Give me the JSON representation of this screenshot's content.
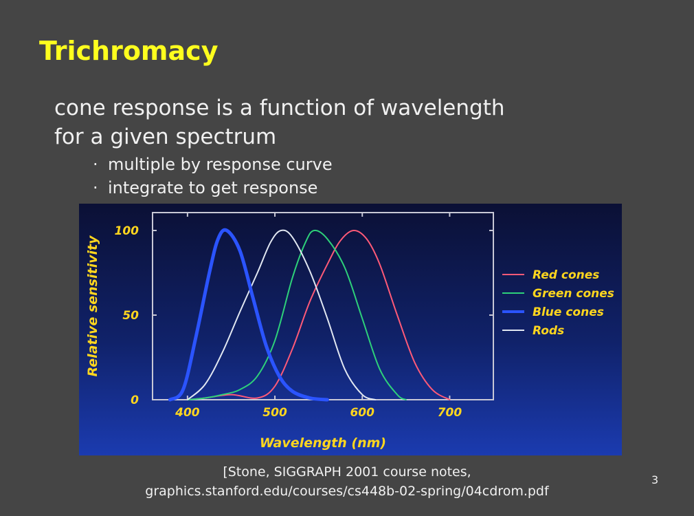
{
  "slide": {
    "title": "Trichromacy",
    "line1": "cone response is a function of wavelength",
    "line2": "for a given spectrum",
    "bullet_glyph": "·",
    "bullets": [
      "multiple by response curve",
      "integrate to get response"
    ],
    "citation_line1": "[Stone, SIGGRAPH 2001 course notes,",
    "citation_line2": "graphics.stanford.edu/courses/cs448b-02-spring/04cdrom.pdf",
    "page_number": "3"
  },
  "colors": {
    "slide_background": "#454545",
    "title": "#ffff1e",
    "text": "#f1f1f1",
    "figure_background_top": "#0b1035",
    "figure_background_bottom": "#1b3bb0",
    "axis_frame": "#c8c8d6",
    "figure_labels": "#ffd61e"
  },
  "chart_data": {
    "type": "line",
    "title": "",
    "xlabel": "Wavelength (nm)",
    "ylabel": "Relative sensitivity",
    "xlim": [
      360,
      750
    ],
    "ylim": [
      0,
      100
    ],
    "x_ticks": [
      400,
      500,
      600,
      700
    ],
    "y_ticks": [
      0,
      50,
      100
    ],
    "grid": false,
    "legend_placement": "right, outside plot area",
    "series": [
      {
        "name": "Red cones",
        "color": "#ff5a78",
        "points": [
          [
            400,
            0
          ],
          [
            420,
            1
          ],
          [
            450,
            3
          ],
          [
            480,
            1
          ],
          [
            500,
            8
          ],
          [
            520,
            30
          ],
          [
            540,
            58
          ],
          [
            560,
            80
          ],
          [
            575,
            94
          ],
          [
            590,
            100
          ],
          [
            605,
            95
          ],
          [
            620,
            80
          ],
          [
            640,
            50
          ],
          [
            660,
            22
          ],
          [
            680,
            6
          ],
          [
            700,
            0
          ]
        ]
      },
      {
        "name": "Green cones",
        "color": "#2ed17a",
        "points": [
          [
            400,
            0
          ],
          [
            420,
            1
          ],
          [
            440,
            3
          ],
          [
            460,
            6
          ],
          [
            480,
            14
          ],
          [
            500,
            35
          ],
          [
            520,
            72
          ],
          [
            535,
            93
          ],
          [
            545,
            100
          ],
          [
            560,
            95
          ],
          [
            580,
            78
          ],
          [
            600,
            48
          ],
          [
            620,
            18
          ],
          [
            640,
            3
          ],
          [
            650,
            0
          ]
        ]
      },
      {
        "name": "Blue cones",
        "color": "#2b54ff",
        "points": [
          [
            380,
            0
          ],
          [
            395,
            6
          ],
          [
            410,
            38
          ],
          [
            425,
            75
          ],
          [
            435,
            95
          ],
          [
            445,
            100
          ],
          [
            460,
            88
          ],
          [
            475,
            60
          ],
          [
            490,
            32
          ],
          [
            505,
            14
          ],
          [
            520,
            5
          ],
          [
            540,
            1
          ],
          [
            560,
            0
          ]
        ]
      },
      {
        "name": "Rods",
        "color": "#e2e8f2",
        "points": [
          [
            400,
            0
          ],
          [
            420,
            9
          ],
          [
            440,
            28
          ],
          [
            460,
            52
          ],
          [
            480,
            75
          ],
          [
            495,
            93
          ],
          [
            507,
            100
          ],
          [
            520,
            96
          ],
          [
            540,
            76
          ],
          [
            560,
            48
          ],
          [
            580,
            18
          ],
          [
            600,
            3
          ],
          [
            615,
            0
          ]
        ]
      }
    ]
  }
}
